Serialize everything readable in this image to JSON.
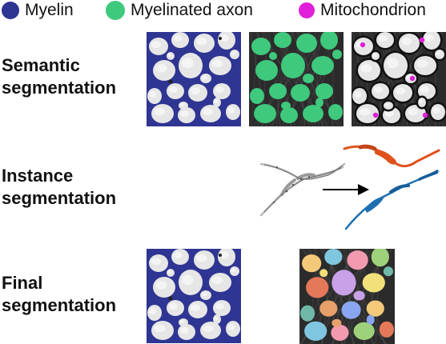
{
  "legend": [
    {
      "label": "Myelin",
      "color": "#2e3592"
    },
    {
      "label": "Myelinated axon",
      "color": "#3ec97c"
    },
    {
      "label": "Mitochondrion",
      "color": "#e020d8"
    }
  ],
  "rows": {
    "semantic": {
      "line1": "Semantic",
      "line2": "segmentation"
    },
    "instance": {
      "line1": "Instance",
      "line2": "segmentation"
    },
    "final": {
      "line1": "Final",
      "line2": "segmentation"
    }
  },
  "colors": {
    "myelin": "#2e3592",
    "axon": "#3ec97c",
    "mito": "#e020d8",
    "orange": "#e0521c",
    "blue": "#1d6fb0",
    "em_bg": "#2b2b2b",
    "em_light": "#e6e6e6",
    "arrow": "#000000"
  }
}
